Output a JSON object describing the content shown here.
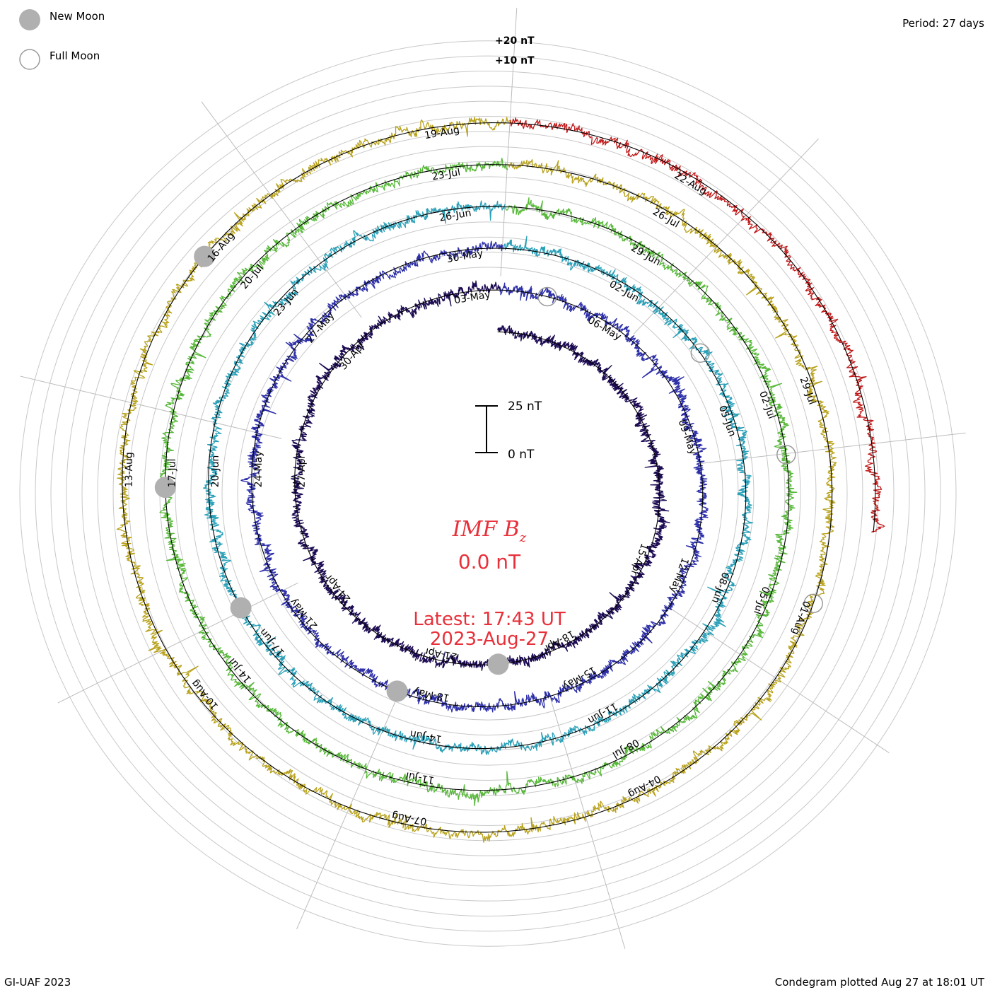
{
  "header": {
    "period_label": "Period: 27 days"
  },
  "footer": {
    "credit": "GI-UAF 2023",
    "plotted": "Condegram plotted Aug 27 at 18:01 UT"
  },
  "legend": {
    "new_moon_label": "New Moon",
    "full_moon_label": "Full Moon",
    "new_moon_color": "#b0b0b0",
    "full_moon_color": "#9a9a9a"
  },
  "center": {
    "title_main": "IMF B",
    "title_sub": "z",
    "current_value": "0.0 nT",
    "latest_time": "Latest: 17:43 UT",
    "latest_date": "2023-Aug-27",
    "text_color": "#e8303a"
  },
  "chart_data": {
    "type": "line",
    "subtype": "spiral condegram (polar, one ring per 27-day rotation)",
    "period_days": 27,
    "units": "nT",
    "scale_bar": {
      "top_label": "25 nT",
      "bottom_label": "0 nT",
      "value_nT": 25
    },
    "ring_reference_labels": [
      "+20 nT",
      "+10 nT"
    ],
    "rings": [
      {
        "name": "",
        "start": "2023-Apr-07",
        "end": "2023-May-04",
        "color": "#1c0b52",
        "date_labels": [
          "15-Apr",
          "18-Apr",
          "21-Apr",
          "24-Apr",
          "27-Apr",
          "30-Apr",
          "03-May"
        ]
      },
      {
        "name": "",
        "start": "2023-May-04",
        "end": "2023-May-31",
        "color": "#2d2fa8",
        "date_labels": [
          "09-May",
          "12-May",
          "15-May",
          "18-May",
          "21-May",
          "24-May",
          "27-May",
          "30-May",
          "06-May"
        ]
      },
      {
        "name": "",
        "start": "2023-May-31",
        "end": "2023-Jun-27",
        "color": "#2aa0b8",
        "date_labels": [
          "02-Jun",
          "05-Jun",
          "08-Jun",
          "11-Jun",
          "14-Jun",
          "17-Jun",
          "20-Jun",
          "23-Jun",
          "26-Jun"
        ]
      },
      {
        "name": "",
        "start": "2023-Jun-27",
        "end": "2023-Jul-24",
        "color": "#58b83a",
        "date_labels": [
          "29-Jun",
          "02-Jul",
          "05-Jul",
          "08-Jul",
          "11-Jul",
          "14-Jul",
          "17-Jul",
          "20-Jul",
          "23-Jul"
        ]
      },
      {
        "name": "",
        "start": "2023-Jul-24",
        "end": "2023-Aug-20",
        "color": "#b8a21c",
        "date_labels": [
          "26-Jul",
          "29-Jul",
          "01-Aug",
          "04-Aug",
          "07-Aug",
          "10-Aug",
          "13-Aug",
          "16-Aug",
          "19-Aug"
        ]
      },
      {
        "name": "",
        "start": "2023-Aug-20",
        "end": "2023-Aug-27",
        "color": "#c01818",
        "date_labels": [
          "22-Aug"
        ]
      }
    ],
    "moon_events": {
      "new_moon": [
        "2023-Apr-20",
        "2023-May-19",
        "2023-Jun-18",
        "2023-Jul-17",
        "2023-Aug-16"
      ],
      "full_moon": [
        "2023-May-05",
        "2023-Jun-04",
        "2023-Jul-03",
        "2023-Aug-01"
      ]
    },
    "grid": true,
    "legend_position": "top-left"
  }
}
